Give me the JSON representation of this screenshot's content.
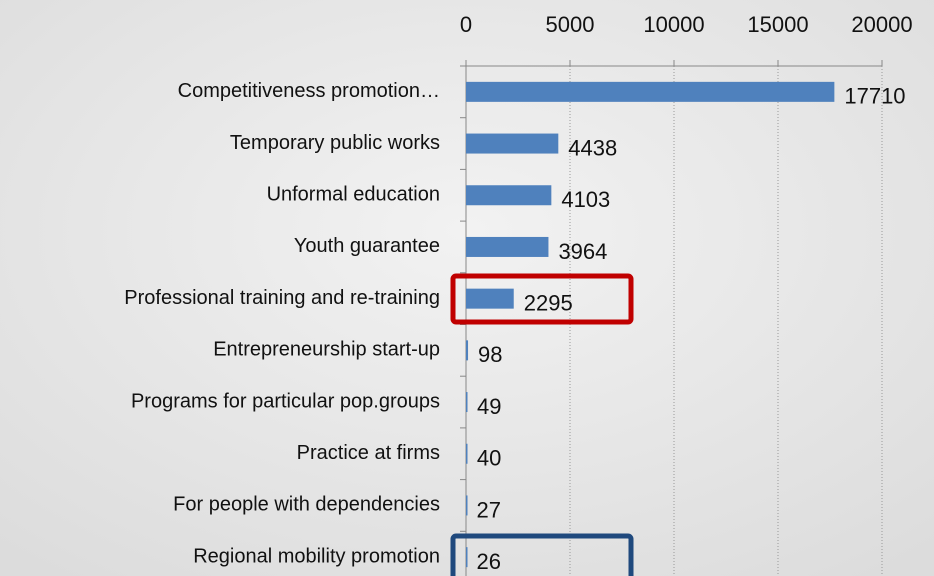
{
  "chart_data": {
    "type": "bar",
    "orientation": "horizontal",
    "categories": [
      "Competitiveness promotion…",
      "Temporary public works",
      "Unformal education",
      "Youth guarantee",
      "Professional training and re-training",
      "Entrepreneurship start-up",
      "Programs for particular pop.groups",
      "Practice at firms",
      "For people with dependencies",
      "Regional mobility promotion"
    ],
    "values": [
      17710,
      4438,
      4103,
      3964,
      2295,
      98,
      49,
      40,
      27,
      26
    ],
    "color": "#4f81bd",
    "xlim": [
      0,
      20000
    ],
    "xticks": [
      0,
      5000,
      10000,
      15000,
      20000
    ],
    "grid": true
  }
}
